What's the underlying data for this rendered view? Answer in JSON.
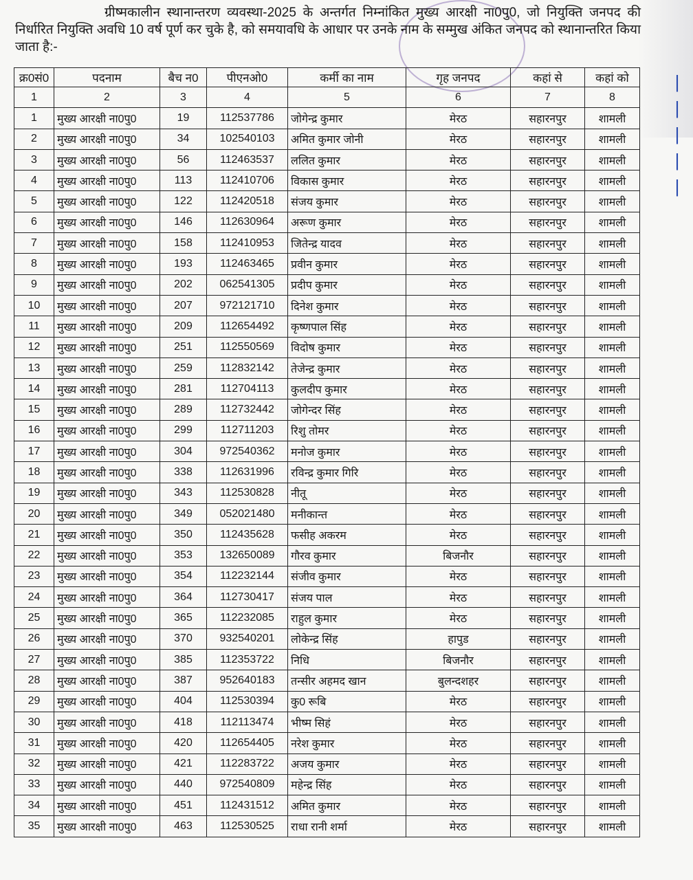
{
  "intro": "ग्रीष्मकालीन स्थानान्तरण व्यवस्था-2025 के अन्तर्गत निम्नांकित मुख्य आरक्षी ना0पु0, जो नियुक्ति जनपद की निर्धारित नियुक्ति अवधि 10 वर्ष पूर्ण कर चुके है, को समयावधि के आधार पर उनके नाम के सम्मुख अंकित जनपद को स्थानान्तरित किया जाता है:-",
  "headers": [
    "क्र0सं0",
    "पदनाम",
    "बैच न0",
    "पीएनओ0",
    "कर्मी का नाम",
    "गृह जनपद",
    "कहां से",
    "कहां को"
  ],
  "col_numbers": [
    "1",
    "2",
    "3",
    "4",
    "5",
    "6",
    "7",
    "8"
  ],
  "rows": [
    [
      "1",
      "मुख्य आरक्षी ना0पु0",
      "19",
      "112537786",
      "जोगेन्द्र कुमार",
      "मेरठ",
      "सहारनपुर",
      "शामली"
    ],
    [
      "2",
      "मुख्य आरक्षी ना0पु0",
      "34",
      "102540103",
      "अमित कुमार जोनी",
      "मेरठ",
      "सहारनपुर",
      "शामली"
    ],
    [
      "3",
      "मुख्य आरक्षी ना0पु0",
      "56",
      "112463537",
      "ललित कुमार",
      "मेरठ",
      "सहारनपुर",
      "शामली"
    ],
    [
      "4",
      "मुख्य आरक्षी ना0पु0",
      "113",
      "112410706",
      "विकास कुमार",
      "मेरठ",
      "सहारनपुर",
      "शामली"
    ],
    [
      "5",
      "मुख्य आरक्षी ना0पु0",
      "122",
      "112420518",
      "संजय कुमार",
      "मेरठ",
      "सहारनपुर",
      "शामली"
    ],
    [
      "6",
      "मुख्य आरक्षी ना0पु0",
      "146",
      "112630964",
      "अरूण कुमार",
      "मेरठ",
      "सहारनपुर",
      "शामली"
    ],
    [
      "7",
      "मुख्य आरक्षी ना0पु0",
      "158",
      "112410953",
      "जितेन्द्र यादव",
      "मेरठ",
      "सहारनपुर",
      "शामली"
    ],
    [
      "8",
      "मुख्य आरक्षी ना0पु0",
      "193",
      "112463465",
      "प्रवीन कुमार",
      "मेरठ",
      "सहारनपुर",
      "शामली"
    ],
    [
      "9",
      "मुख्य आरक्षी ना0पु0",
      "202",
      "062541305",
      "प्रदीप कुमार",
      "मेरठ",
      "सहारनपुर",
      "शामली"
    ],
    [
      "10",
      "मुख्य आरक्षी ना0पु0",
      "207",
      "972121710",
      "दिनेश कुमार",
      "मेरठ",
      "सहारनपुर",
      "शामली"
    ],
    [
      "11",
      "मुख्य आरक्षी ना0पु0",
      "209",
      "112654492",
      "कृष्णपाल सिंह",
      "मेरठ",
      "सहारनपुर",
      "शामली"
    ],
    [
      "12",
      "मुख्य आरक्षी ना0पु0",
      "251",
      "112550569",
      "विदोष कुमार",
      "मेरठ",
      "सहारनपुर",
      "शामली"
    ],
    [
      "13",
      "मुख्य आरक्षी ना0पु0",
      "259",
      "112832142",
      "तेजेन्द्र कुमार",
      "मेरठ",
      "सहारनपुर",
      "शामली"
    ],
    [
      "14",
      "मुख्य आरक्षी ना0पु0",
      "281",
      "112704113",
      "कुलदीप कुमार",
      "मेरठ",
      "सहारनपुर",
      "शामली"
    ],
    [
      "15",
      "मुख्य आरक्षी ना0पु0",
      "289",
      "112732442",
      "जोगेन्दर सिंह",
      "मेरठ",
      "सहारनपुर",
      "शामली"
    ],
    [
      "16",
      "मुख्य आरक्षी ना0पु0",
      "299",
      "112711203",
      "रिशु तोमर",
      "मेरठ",
      "सहारनपुर",
      "शामली"
    ],
    [
      "17",
      "मुख्य आरक्षी ना0पु0",
      "304",
      "972540362",
      "मनोज कुमार",
      "मेरठ",
      "सहारनपुर",
      "शामली"
    ],
    [
      "18",
      "मुख्य आरक्षी ना0पु0",
      "338",
      "112631996",
      "रविन्द्र कुमार गिरि",
      "मेरठ",
      "सहारनपुर",
      "शामली"
    ],
    [
      "19",
      "मुख्य आरक्षी ना0पु0",
      "343",
      "112530828",
      "नीतू",
      "मेरठ",
      "सहारनपुर",
      "शामली"
    ],
    [
      "20",
      "मुख्य आरक्षी ना0पु0",
      "349",
      "052021480",
      "मनीकान्त",
      "मेरठ",
      "सहारनपुर",
      "शामली"
    ],
    [
      "21",
      "मुख्य आरक्षी ना0पु0",
      "350",
      "112435628",
      "फसीह अकरम",
      "मेरठ",
      "सहारनपुर",
      "शामली"
    ],
    [
      "22",
      "मुख्य आरक्षी ना0पु0",
      "353",
      "132650089",
      "गौरव कुमार",
      "बिजनौर",
      "सहारनपुर",
      "शामली"
    ],
    [
      "23",
      "मुख्य आरक्षी ना0पु0",
      "354",
      "112232144",
      "संजीव कुमार",
      "मेरठ",
      "सहारनपुर",
      "शामली"
    ],
    [
      "24",
      "मुख्य आरक्षी ना0पु0",
      "364",
      "112730417",
      "संजय पाल",
      "मेरठ",
      "सहारनपुर",
      "शामली"
    ],
    [
      "25",
      "मुख्य आरक्षी ना0पु0",
      "365",
      "112232085",
      "राहुल कुमार",
      "मेरठ",
      "सहारनपुर",
      "शामली"
    ],
    [
      "26",
      "मुख्य आरक्षी ना0पु0",
      "370",
      "932540201",
      "लोकेन्द्र सिंह",
      "हापुड",
      "सहारनपुर",
      "शामली"
    ],
    [
      "27",
      "मुख्य आरक्षी ना0पु0",
      "385",
      "112353722",
      "निधि",
      "बिजनौर",
      "सहारनपुर",
      "शामली"
    ],
    [
      "28",
      "मुख्य आरक्षी ना0पु0",
      "387",
      "952640183",
      "तन्सीर अहमद खान",
      "बुलन्दशहर",
      "सहारनपुर",
      "शामली"
    ],
    [
      "29",
      "मुख्य आरक्षी ना0पु0",
      "404",
      "112530394",
      "कु0 रूबि",
      "मेरठ",
      "सहारनपुर",
      "शामली"
    ],
    [
      "30",
      "मुख्य आरक्षी ना0पु0",
      "418",
      "112113474",
      "भीष्म सिहं",
      "मेरठ",
      "सहारनपुर",
      "शामली"
    ],
    [
      "31",
      "मुख्य आरक्षी ना0पु0",
      "420",
      "112654405",
      "नरेश कुमार",
      "मेरठ",
      "सहारनपुर",
      "शामली"
    ],
    [
      "32",
      "मुख्य आरक्षी ना0पु0",
      "421",
      "112283722",
      "अजय कुमार",
      "मेरठ",
      "सहारनपुर",
      "शामली"
    ],
    [
      "33",
      "मुख्य आरक्षी ना0पु0",
      "440",
      "972540809",
      "महेन्द्र सिंह",
      "मेरठ",
      "सहारनपुर",
      "शामली"
    ],
    [
      "34",
      "मुख्य आरक्षी ना0पु0",
      "451",
      "112431512",
      "अमित कुमार",
      "मेरठ",
      "सहारनपुर",
      "शामली"
    ],
    [
      "35",
      "मुख्य आरक्षी ना0पु0",
      "463",
      "112530525",
      "राधा रानी शर्मा",
      "मेरठ",
      "सहारनपुर",
      "शामली"
    ]
  ],
  "colors": {
    "ink": "#1a1a1a",
    "stamp": "#7a5aaa",
    "pen": "#2a4bb0"
  }
}
